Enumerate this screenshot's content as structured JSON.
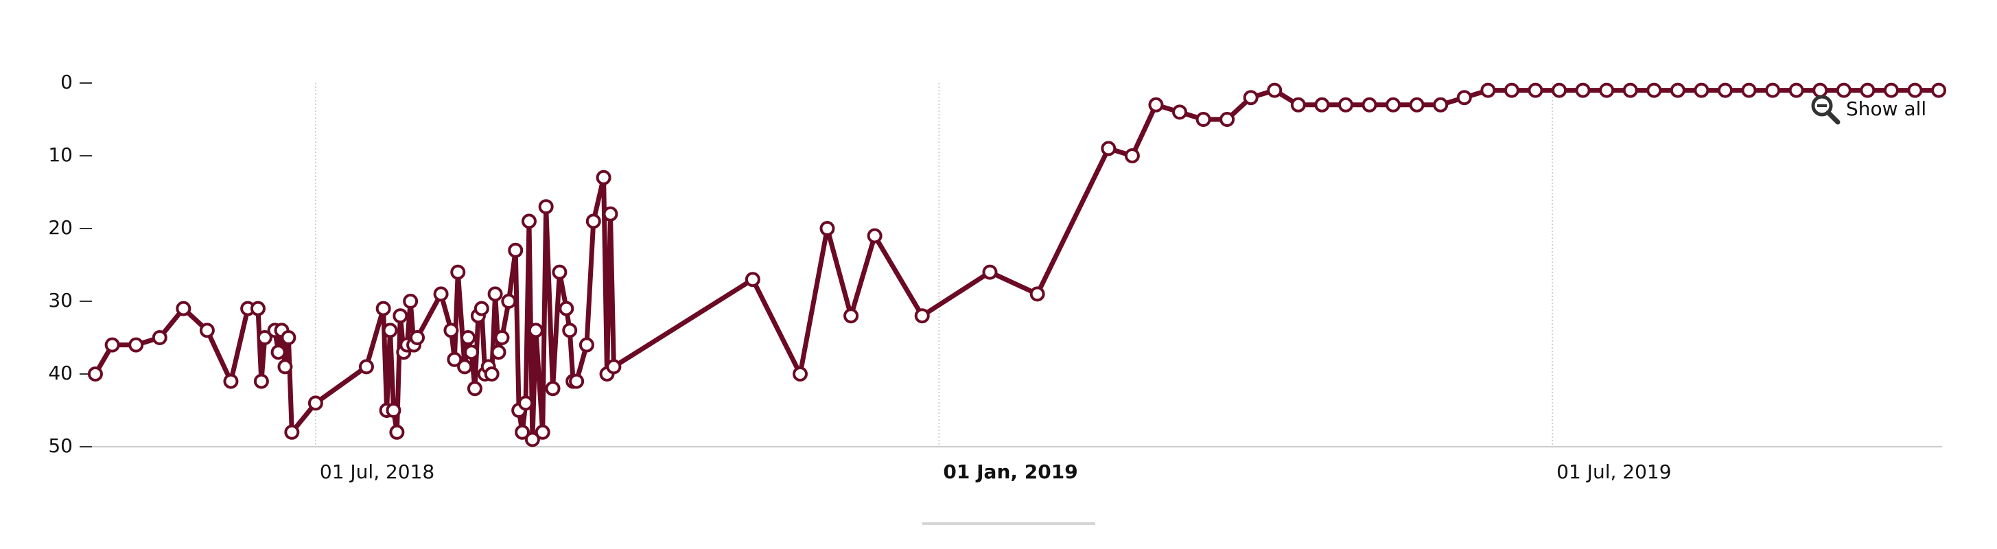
{
  "chart_data": {
    "type": "line",
    "color": "#6b0a24",
    "marker_fill": "#ffffff",
    "grid": "x",
    "y_reversed": true,
    "reset_zoom_label": "Show all",
    "xlim": [
      "2018-04-26",
      "2019-10-24"
    ],
    "xticks": [
      {
        "value": "2018-07-01",
        "label": "01 Jul, 2018"
      },
      {
        "value": "2019-01-01",
        "label": "01 Jan, 2019"
      },
      {
        "value": "2019-07-01",
        "label": "01 Jul, 2019"
      }
    ],
    "ylim": [
      0,
      50
    ],
    "yticks": [
      0,
      10,
      20,
      30,
      40,
      50
    ],
    "x": [
      "2018-04-27",
      "2018-05-02",
      "2018-05-09",
      "2018-05-16",
      "2018-05-23",
      "2018-05-30",
      "2018-06-06",
      "2018-06-11",
      "2018-06-14",
      "2018-06-15",
      "2018-06-16",
      "2018-06-19",
      "2018-06-20",
      "2018-06-21",
      "2018-06-22",
      "2018-06-23",
      "2018-06-24",
      "2018-07-01",
      "2018-07-16",
      "2018-07-21",
      "2018-07-22",
      "2018-07-23",
      "2018-07-24",
      "2018-07-25",
      "2018-07-26",
      "2018-07-27",
      "2018-07-28",
      "2018-07-29",
      "2018-07-30",
      "2018-07-31",
      "2018-08-07",
      "2018-08-10",
      "2018-08-11",
      "2018-08-12",
      "2018-08-14",
      "2018-08-15",
      "2018-08-16",
      "2018-08-17",
      "2018-08-18",
      "2018-08-19",
      "2018-08-20",
      "2018-08-21",
      "2018-08-22",
      "2018-08-23",
      "2018-08-24",
      "2018-08-25",
      "2018-08-27",
      "2018-08-29",
      "2018-08-30",
      "2018-08-31",
      "2018-09-01",
      "2018-09-02",
      "2018-09-03",
      "2018-09-04",
      "2018-09-06",
      "2018-09-07",
      "2018-09-09",
      "2018-09-11",
      "2018-09-13",
      "2018-09-14",
      "2018-09-15",
      "2018-09-16",
      "2018-09-19",
      "2018-09-21",
      "2018-09-24",
      "2018-09-25",
      "2018-09-26",
      "2018-09-27",
      "2018-11-07",
      "2018-11-21",
      "2018-11-29",
      "2018-12-06",
      "2018-12-13",
      "2018-12-27",
      "2019-01-16",
      "2019-01-30",
      "2019-02-20",
      "2019-02-27",
      "2019-03-06",
      "2019-03-13",
      "2019-03-20",
      "2019-03-27",
      "2019-04-03",
      "2019-04-10",
      "2019-04-17",
      "2019-04-24",
      "2019-05-01",
      "2019-05-08",
      "2019-05-15",
      "2019-05-22",
      "2019-05-29",
      "2019-06-05",
      "2019-06-12",
      "2019-06-19",
      "2019-06-26",
      "2019-07-03",
      "2019-07-10",
      "2019-07-17",
      "2019-07-24",
      "2019-07-31",
      "2019-08-07",
      "2019-08-14",
      "2019-08-21",
      "2019-08-28",
      "2019-09-04",
      "2019-09-11",
      "2019-09-18",
      "2019-09-25",
      "2019-10-02",
      "2019-10-09",
      "2019-10-16",
      "2019-10-23"
    ],
    "values": [
      40,
      36,
      36,
      35,
      31,
      34,
      41,
      31,
      31,
      41,
      35,
      34,
      37,
      34,
      39,
      35,
      48,
      44,
      39,
      31,
      45,
      34,
      45,
      48,
      32,
      37,
      36,
      30,
      36,
      35,
      29,
      34,
      38,
      26,
      39,
      35,
      37,
      42,
      32,
      31,
      40,
      39,
      40,
      29,
      37,
      35,
      30,
      23,
      45,
      48,
      44,
      19,
      49,
      34,
      48,
      17,
      42,
      26,
      31,
      34,
      41,
      41,
      36,
      19,
      13,
      40,
      18,
      39,
      27,
      40,
      20,
      32,
      21,
      32,
      26,
      29,
      9,
      10,
      3,
      4,
      5,
      5,
      2,
      1,
      3,
      3,
      3,
      3,
      3,
      3,
      3,
      2,
      1,
      1,
      1,
      1,
      1,
      1,
      1,
      1,
      1,
      1,
      1,
      1,
      1,
      1,
      1,
      1,
      1,
      1,
      1,
      1
    ]
  }
}
